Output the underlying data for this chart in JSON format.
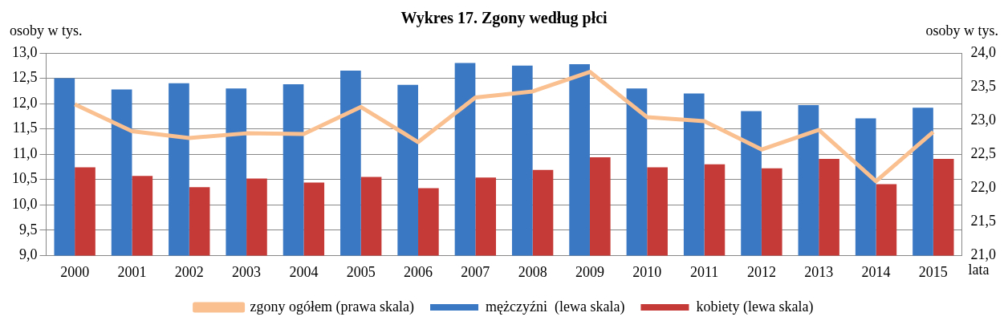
{
  "chart_data": {
    "type": "bar",
    "title": "Wykres 17. Zgony według płci",
    "ylabel": "osoby w tys.",
    "y2label": "osoby w tys.",
    "xlabel": "lata",
    "categories": [
      "2000",
      "2001",
      "2002",
      "2003",
      "2004",
      "2005",
      "2006",
      "2007",
      "2008",
      "2009",
      "2010",
      "2011",
      "2012",
      "2013",
      "2014",
      "2015"
    ],
    "series": [
      {
        "name": "mężczyźni  (lewa skala)",
        "color": "#3a78c4",
        "values": [
          12.5,
          12.28,
          12.4,
          12.3,
          12.38,
          12.65,
          12.37,
          12.8,
          12.75,
          12.78,
          12.3,
          12.2,
          11.85,
          11.97,
          11.71,
          11.92
        ]
      },
      {
        "name": "kobiety (lewa skala)",
        "color": "#c53a36",
        "values": [
          10.74,
          10.57,
          10.35,
          10.52,
          10.44,
          10.55,
          10.33,
          10.54,
          10.69,
          10.94,
          10.74,
          10.8,
          10.72,
          10.91,
          10.41,
          10.91
        ]
      },
      {
        "name": "zgony ogółem (prawa skala)",
        "type": "line",
        "axis": "y2",
        "color": "#fac090",
        "values": [
          23.24,
          22.84,
          22.74,
          22.81,
          22.8,
          23.2,
          22.68,
          23.34,
          23.43,
          23.72,
          23.05,
          22.99,
          22.57,
          22.86,
          22.1,
          22.83
        ]
      }
    ],
    "ylim": [
      9,
      13
    ],
    "yticks": [
      {
        "value": 9,
        "label": "9,0"
      },
      {
        "value": 9.5,
        "label": "9,5"
      },
      {
        "value": 10,
        "label": "10,0"
      },
      {
        "value": 10.5,
        "label": "10,5"
      },
      {
        "value": 11,
        "label": "11,0"
      },
      {
        "value": 11.5,
        "label": "11,5"
      },
      {
        "value": 12,
        "label": "12,0"
      },
      {
        "value": 12.5,
        "label": "12,5"
      },
      {
        "value": 13,
        "label": "13,0"
      }
    ],
    "y2lim": [
      21,
      24
    ],
    "y2ticks": [
      {
        "value": 21,
        "label": "21,0"
      },
      {
        "value": 21.5,
        "label": "21,5"
      },
      {
        "value": 22,
        "label": "22,0"
      },
      {
        "value": 22.5,
        "label": "22,5"
      },
      {
        "value": 23,
        "label": "23,0"
      },
      {
        "value": 23.5,
        "label": "23,5"
      },
      {
        "value": 24,
        "label": "24,0"
      }
    ],
    "grid": "y",
    "legend": "bottom",
    "marker": "none",
    "line_style": "solid"
  }
}
